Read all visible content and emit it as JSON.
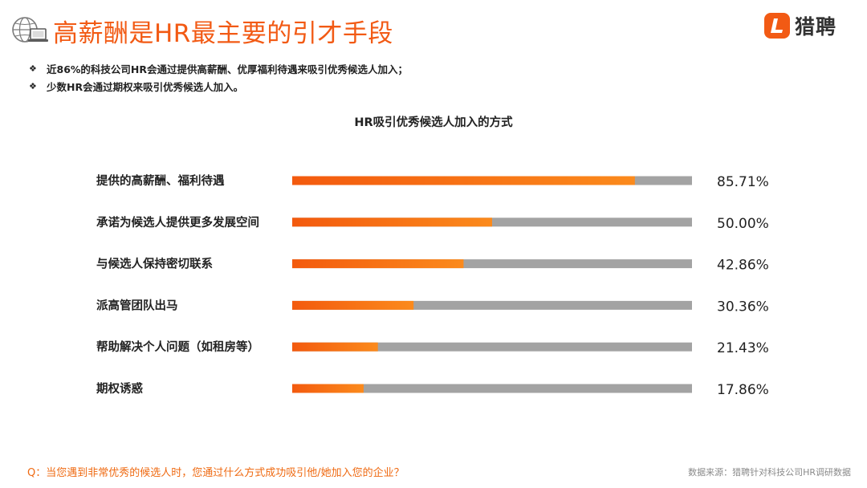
{
  "header": {
    "title": "高薪酬是HR最主要的引才手段",
    "brand_name": "猎聘",
    "accent_color": "#f25a14",
    "icons": [
      "globe-computer-icon",
      "liepin-logo-icon"
    ]
  },
  "bullets": [
    "近86%的科技公司HR会通过提供高薪酬、优厚福利待遇来吸引优秀候选人加入；",
    "少数HR会通过期权来吸引优秀候选人加入。"
  ],
  "bullet_symbol": "❖",
  "chart_data": {
    "type": "bar",
    "orientation": "horizontal",
    "title": "HR吸引优秀候选人加入的方式",
    "categories": [
      "提供的高薪酬、福利待遇",
      "承诺为候选人提供更多发展空间",
      "与候选人保持密切联系",
      "派高管团队出马",
      "帮助解决个人问题（如租房等）",
      "期权诱惑"
    ],
    "values": [
      85.71,
      50.0,
      42.86,
      30.36,
      21.43,
      17.86
    ],
    "value_labels": [
      "85.71%",
      "50.00%",
      "42.86%",
      "30.36%",
      "21.43%",
      "17.86%"
    ],
    "xlim": [
      0,
      100
    ],
    "unit": "%",
    "bar_color_start": "#f35a0e",
    "bar_color_end": "#fb8a1c",
    "track_color": "#a3a3a3",
    "grid": false,
    "legend": "none"
  },
  "footer": {
    "question": "Q：当您遇到非常优秀的候选人时，您通过什么方式成功吸引他/她加入您的企业？",
    "source": "数据来源：猎聘针对科技公司HR调研数据"
  }
}
